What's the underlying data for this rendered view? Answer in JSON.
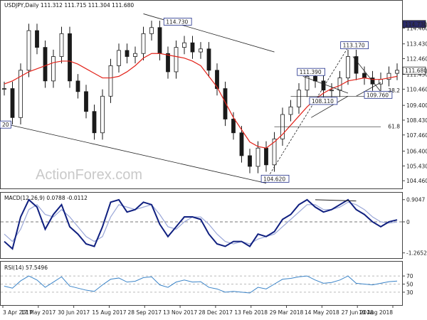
{
  "chart_data": [
    {
      "type": "candlestick",
      "title": "USDJPY,Daily  111.312 111.715 111.304 111.680",
      "y_ticks": [
        104.46,
        105.43,
        106.4,
        107.46,
        108.43,
        109.4,
        110.46,
        111.43,
        112.46,
        113.43,
        114.46
      ],
      "ylim": [
        104.0,
        115.7
      ],
      "x_ticks": [
        "3 Apr 2017",
        "17 May 2017",
        "30 Jun 2017",
        "15 Aug 2017",
        "28 Sep 2017",
        "13 Nov 2017",
        "28 Dec 2017",
        "13 Feb 2018",
        "29 Mar 2018",
        "14 May 2018",
        "27 Jun 2018",
        "10 Aug 2018"
      ],
      "last_price": "111.680",
      "key_level": "114.730",
      "annotations": {
        "high_1": "114.730",
        "low_1": "104.620",
        "level_111": "111.390",
        "level_113": "113.170",
        "level_108": "108.110",
        "level_109": "109.760",
        "fib_38": "38.2",
        "fib_61": "61.8",
        "left_edge": "20"
      },
      "series": [
        {
          "name": "close",
          "values": [
            110.5,
            108.6,
            111.7,
            114.3,
            113.2,
            111.0,
            112.6,
            114.1,
            111.0,
            110.3,
            109.0,
            107.6,
            110.0,
            112.0,
            113.0,
            112.6,
            112.8,
            114.1,
            114.5,
            112.8,
            111.6,
            113.2,
            113.5,
            112.9,
            113.1,
            111.7,
            110.5,
            108.5,
            107.6,
            106.1,
            105.4,
            106.6,
            105.5,
            107.2,
            108.8,
            109.3,
            110.4,
            111.3,
            111.0,
            110.4,
            110.4,
            111.2,
            112.6,
            111.5,
            111.2,
            110.8,
            111.1,
            111.5,
            111.7
          ]
        },
        {
          "name": "MA",
          "values": [
            110.8,
            111.0,
            111.3,
            111.6,
            111.8,
            112.0,
            112.2,
            112.3,
            112.3,
            112.1,
            111.8,
            111.5,
            111.2,
            111.2,
            111.3,
            111.6,
            112.0,
            112.5,
            112.8,
            112.8,
            112.7,
            112.6,
            112.5,
            112.3,
            112.0,
            111.3,
            110.6,
            109.6,
            108.6,
            107.8,
            107.0,
            106.7,
            106.6,
            107.0,
            107.5,
            108.1,
            108.7,
            109.3,
            109.8,
            110.2,
            110.5,
            110.7,
            111.0,
            111.1,
            111.2,
            111.1,
            111.1,
            111.2,
            111.3
          ]
        }
      ]
    },
    {
      "type": "line",
      "title": "MACD(12,26,9) 0.0788 -0.0112",
      "y_ticks": [
        -1.2652,
        0.0,
        0.9047
      ],
      "ylim": [
        -1.45,
        1.1
      ],
      "series": [
        {
          "name": "MACD",
          "values": [
            -0.8,
            -1.1,
            0.2,
            0.9,
            0.6,
            -0.3,
            0.3,
            0.7,
            -0.2,
            -0.5,
            -0.9,
            -1.0,
            -0.2,
            0.8,
            0.9,
            0.4,
            0.5,
            0.8,
            0.7,
            -0.1,
            -0.6,
            -0.2,
            0.2,
            0.2,
            0.1,
            -0.5,
            -0.9,
            -1.0,
            -0.8,
            -0.8,
            -1.0,
            -0.5,
            -0.6,
            -0.4,
            0.1,
            0.3,
            0.7,
            0.9,
            0.6,
            0.4,
            0.5,
            0.7,
            0.9,
            0.5,
            0.3,
            0.0,
            -0.2,
            0.0,
            0.08
          ]
        },
        {
          "name": "Signal",
          "values": [
            -0.5,
            -0.8,
            -0.3,
            0.5,
            0.7,
            0.3,
            0.2,
            0.5,
            0.2,
            -0.2,
            -0.6,
            -0.8,
            -0.6,
            0.2,
            0.7,
            0.6,
            0.5,
            0.6,
            0.7,
            0.3,
            -0.2,
            -0.3,
            0.0,
            0.2,
            0.2,
            -0.1,
            -0.5,
            -0.8,
            -0.9,
            -0.8,
            -0.9,
            -0.7,
            -0.6,
            -0.5,
            -0.2,
            0.1,
            0.4,
            0.7,
            0.7,
            0.5,
            0.5,
            0.6,
            0.8,
            0.7,
            0.5,
            0.2,
            0.0,
            -0.05,
            -0.01
          ]
        }
      ]
    },
    {
      "type": "line",
      "title": "RSI(14) 57.5496",
      "y_ticks": [
        30,
        50,
        70
      ],
      "ylim": [
        0,
        100
      ],
      "series": [
        {
          "name": "RSI",
          "values": [
            45,
            40,
            58,
            70,
            60,
            42,
            55,
            68,
            45,
            40,
            35,
            32,
            48,
            62,
            65,
            55,
            57,
            66,
            68,
            48,
            42,
            55,
            60,
            55,
            56,
            42,
            38,
            30,
            32,
            30,
            28,
            42,
            38,
            50,
            62,
            64,
            68,
            70,
            60,
            52,
            54,
            60,
            70,
            52,
            50,
            48,
            52,
            56,
            57.5
          ]
        }
      ]
    }
  ],
  "watermark": "ActionForex.com",
  "colors": {
    "candle": "#1a1a1a",
    "ma": "#e2231a",
    "macd": "#102080",
    "signal": "#9aa7d8",
    "rsi": "#3b84c8",
    "box_border": "#1f2e8a",
    "box_fill": "#ffffff",
    "last_box": "#ffffff",
    "key_box": "#2a2a66"
  }
}
